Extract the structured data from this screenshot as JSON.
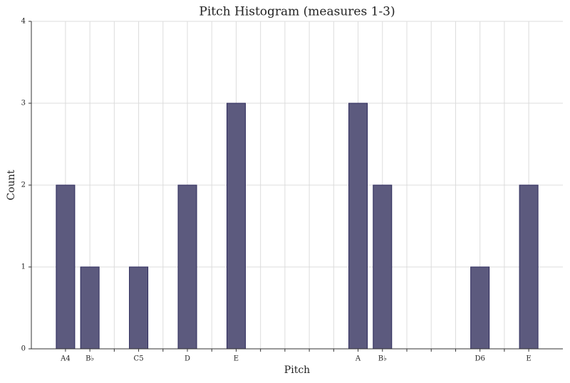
{
  "chart_data": {
    "type": "bar",
    "title": "Pitch Histogram (measures 1-3)",
    "x_label": "Pitch",
    "y_label": "Count",
    "categories": [
      "A4",
      "B♭",
      null,
      "C5",
      null,
      "D",
      null,
      "E",
      null,
      null,
      null,
      null,
      "A",
      "B♭",
      null,
      null,
      null,
      "D6",
      null,
      "E"
    ],
    "values": [
      2,
      1,
      0,
      1,
      0,
      2,
      0,
      3,
      0,
      0,
      0,
      0,
      3,
      2,
      0,
      0,
      0,
      1,
      0,
      2
    ],
    "color": "#5c5a7e",
    "edge_color": "#2e2b5c",
    "ylim": [
      0,
      4
    ],
    "yticks": [
      0,
      1,
      2,
      3,
      4
    ],
    "grid": true
  }
}
